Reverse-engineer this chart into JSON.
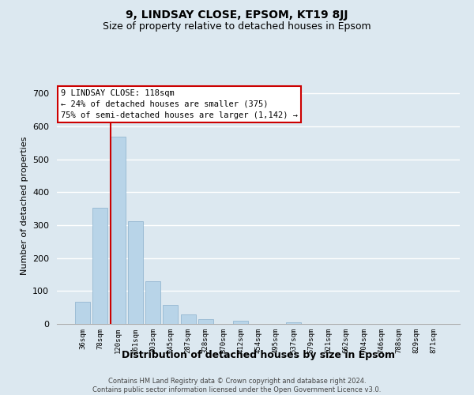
{
  "title": "9, LINDSAY CLOSE, EPSOM, KT19 8JJ",
  "subtitle": "Size of property relative to detached houses in Epsom",
  "xlabel": "Distribution of detached houses by size in Epsom",
  "ylabel": "Number of detached properties",
  "bin_labels": [
    "36sqm",
    "78sqm",
    "120sqm",
    "161sqm",
    "203sqm",
    "245sqm",
    "287sqm",
    "328sqm",
    "370sqm",
    "412sqm",
    "454sqm",
    "495sqm",
    "537sqm",
    "579sqm",
    "621sqm",
    "662sqm",
    "704sqm",
    "746sqm",
    "788sqm",
    "829sqm",
    "871sqm"
  ],
  "bar_values": [
    68,
    352,
    568,
    311,
    130,
    57,
    28,
    14,
    0,
    10,
    0,
    0,
    4,
    0,
    0,
    0,
    0,
    0,
    0,
    0,
    0
  ],
  "bar_color": "#b8d4e8",
  "highlight_index": 2,
  "highlight_color": "#cc0000",
  "annotation_lines": [
    "9 LINDSAY CLOSE: 118sqm",
    "← 24% of detached houses are smaller (375)",
    "75% of semi-detached houses are larger (1,142) →"
  ],
  "ylim": [
    0,
    720
  ],
  "yticks": [
    0,
    100,
    200,
    300,
    400,
    500,
    600,
    700
  ],
  "footer_line1": "Contains HM Land Registry data © Crown copyright and database right 2024.",
  "footer_line2": "Contains public sector information licensed under the Open Government Licence v3.0.",
  "bg_color": "#dce8f0",
  "plot_bg_color": "#dce8f0",
  "title_fontsize": 10,
  "subtitle_fontsize": 9
}
